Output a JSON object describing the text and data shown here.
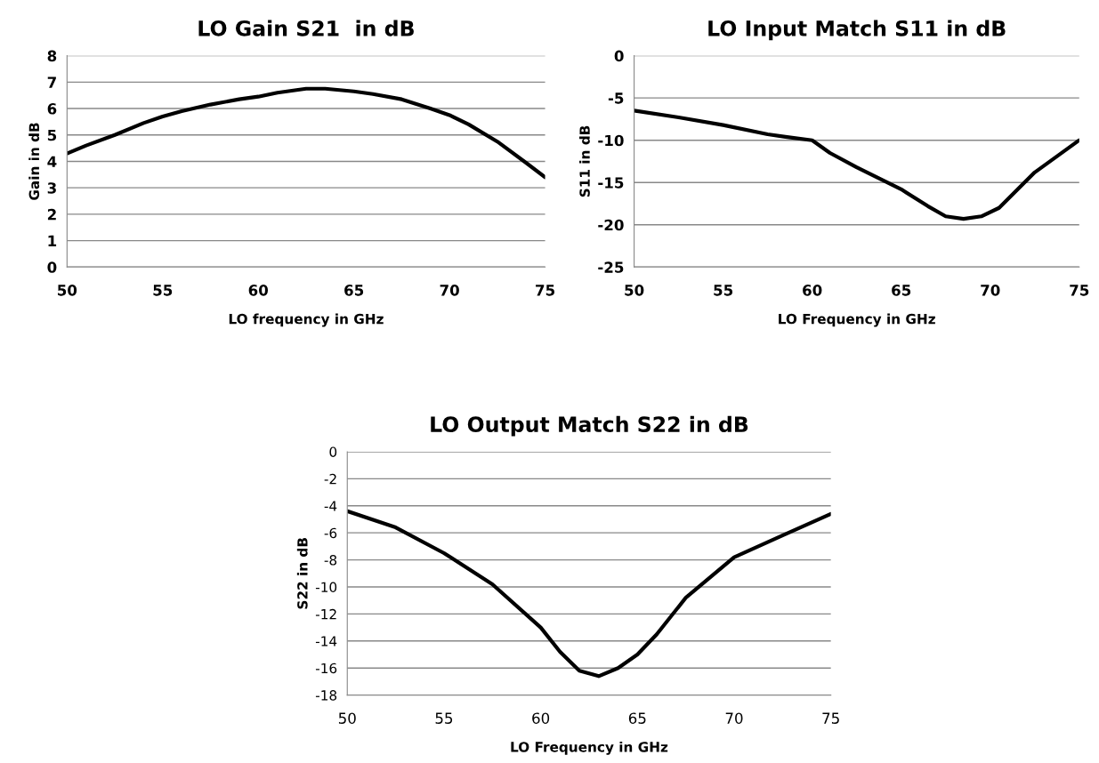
{
  "chart_data": [
    {
      "type": "line",
      "title": "LO Gain S21  in dB",
      "xlabel": "LO frequency in GHz",
      "ylabel": "Gain in dB",
      "xlim": [
        50,
        75
      ],
      "xticks": [
        50,
        55,
        60,
        65,
        70,
        75
      ],
      "ylim": [
        0,
        8
      ],
      "yticks": [
        0,
        1,
        2,
        3,
        4,
        5,
        6,
        7,
        8
      ],
      "grid": "y",
      "marker": "none",
      "line_style": "solid",
      "series": [
        {
          "color": "#000000",
          "x": [
            50,
            51,
            52.5,
            54,
            55,
            56,
            57.5,
            59,
            60,
            61,
            62.5,
            63.5,
            65,
            66,
            67.5,
            69,
            70,
            71,
            72.5,
            74,
            75
          ],
          "values": [
            4.3,
            4.6,
            5.0,
            5.45,
            5.7,
            5.9,
            6.15,
            6.35,
            6.45,
            6.6,
            6.75,
            6.75,
            6.65,
            6.55,
            6.35,
            6.0,
            5.75,
            5.4,
            4.75,
            3.95,
            3.4
          ]
        }
      ]
    },
    {
      "type": "line",
      "title": "LO Input Match S11 in dB",
      "xlabel": "LO Frequency in GHz",
      "ylabel": "S11 in dB",
      "xlim": [
        50,
        75
      ],
      "xticks": [
        50,
        55,
        60,
        65,
        70,
        75
      ],
      "ylim": [
        -25,
        0
      ],
      "yticks": [
        -25,
        -20,
        -15,
        -10,
        -5,
        0
      ],
      "grid": "y",
      "marker": "none",
      "line_style": "solid",
      "series": [
        {
          "color": "#000000",
          "x": [
            50,
            52.5,
            55,
            57.5,
            58.5,
            60,
            61,
            62.5,
            65,
            66.5,
            67.5,
            68.5,
            69.5,
            70.5,
            72.5,
            75
          ],
          "values": [
            -6.5,
            -7.3,
            -8.2,
            -9.3,
            -9.6,
            -10,
            -11.5,
            -13.2,
            -15.8,
            -17.8,
            -19.0,
            -19.3,
            -19.0,
            -18.0,
            -13.8,
            -10
          ]
        }
      ]
    },
    {
      "type": "line",
      "title": "LO Output Match S22 in dB",
      "xlabel": "LO Frequency in GHz",
      "ylabel": "S22 in dB",
      "xlim": [
        50,
        75
      ],
      "xticks": [
        50,
        55,
        60,
        65,
        70,
        75
      ],
      "ylim": [
        -18,
        0
      ],
      "yticks": [
        -18,
        -16,
        -14,
        -12,
        -10,
        -8,
        -6,
        -4,
        -2,
        0
      ],
      "grid": "y",
      "marker": "none",
      "line_style": "solid",
      "series": [
        {
          "color": "#000000",
          "x": [
            50,
            52.5,
            55,
            57.5,
            60,
            61,
            62,
            63,
            64,
            65,
            66,
            67.5,
            70,
            72.5,
            75
          ],
          "values": [
            -4.4,
            -5.6,
            -7.5,
            -9.8,
            -13.0,
            -14.8,
            -16.2,
            -16.6,
            -16.0,
            -15.0,
            -13.5,
            -10.8,
            -7.8,
            -6.2,
            -4.6
          ]
        }
      ]
    }
  ]
}
